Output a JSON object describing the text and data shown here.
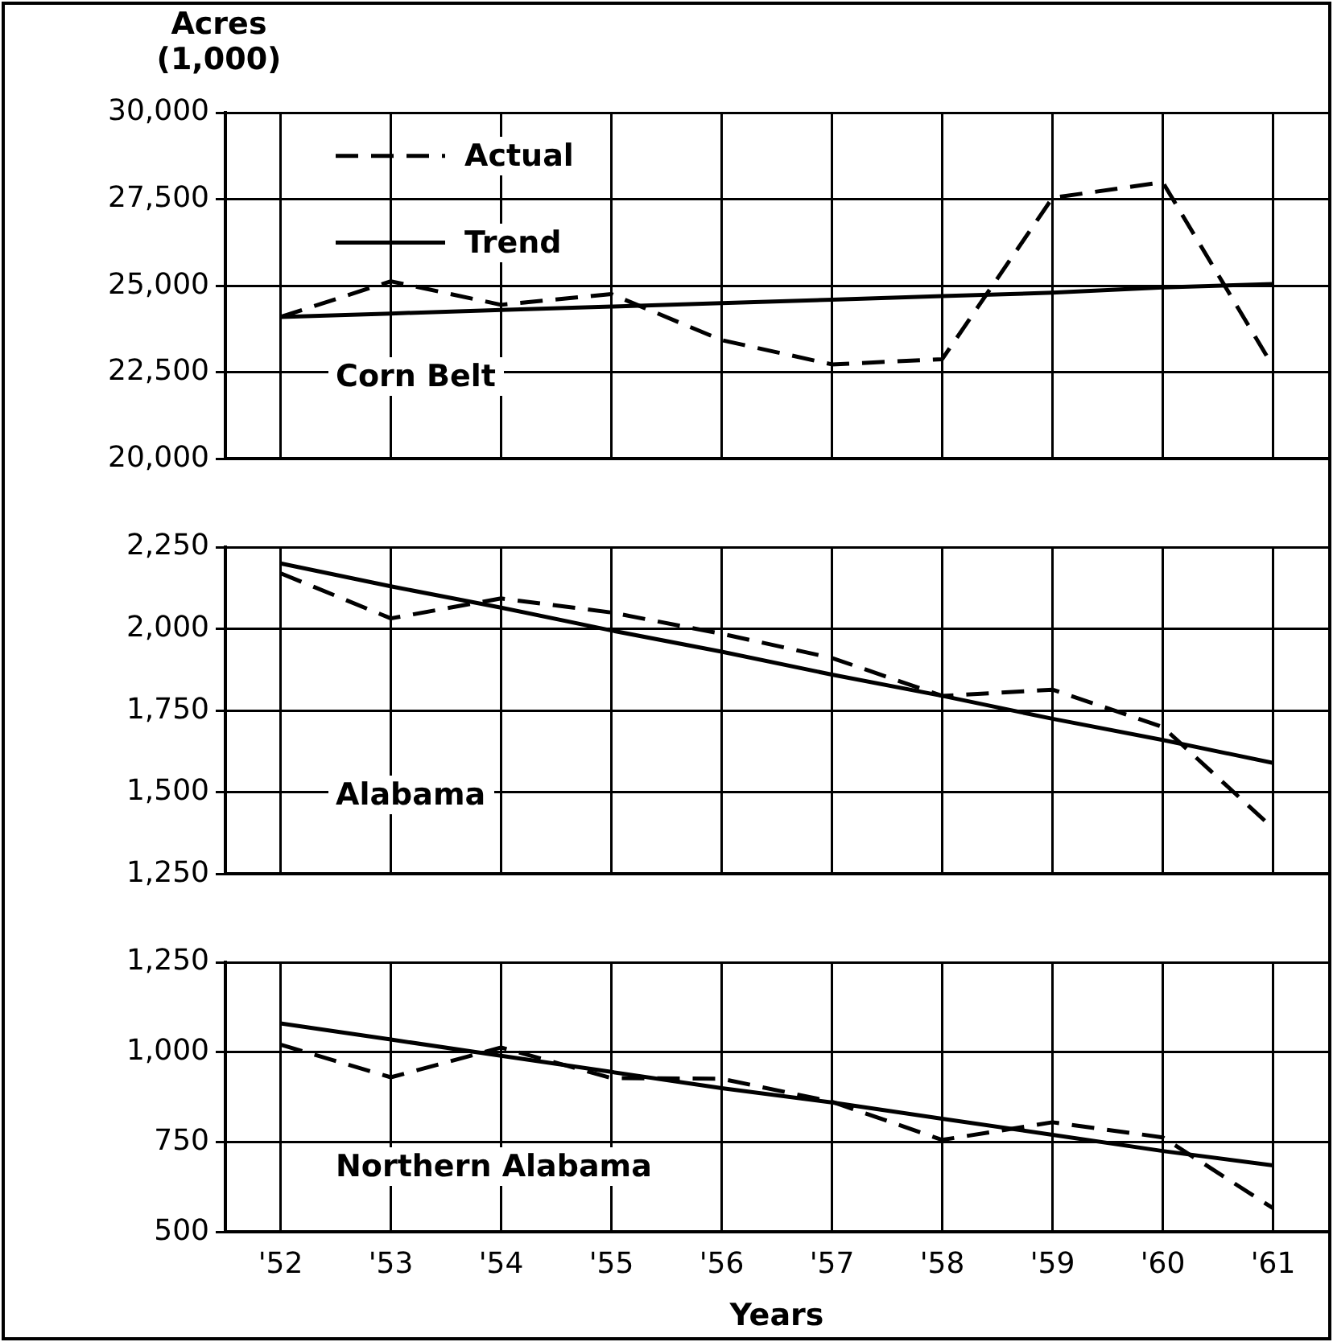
{
  "chart_data": [
    {
      "type": "line",
      "ylabel": "Acres (1,000)",
      "categories": [
        null,
        null,
        null,
        null,
        null,
        null,
        null,
        null,
        null,
        null
      ],
      "series": [
        {
          "name": "Actual",
          "color": "#000000",
          "line_style": "dashed",
          "values": [
            24100,
            25130,
            24450,
            24760,
            23430,
            22730,
            22880,
            27540,
            27990,
            22670
          ]
        },
        {
          "name": "Trend",
          "color": "#000000",
          "line_style": "solid",
          "values": [
            24100,
            24200,
            24300,
            24400,
            24500,
            24600,
            24700,
            24800,
            24950,
            25050
          ]
        }
      ],
      "ylim": [
        20000,
        30000
      ],
      "yticks": [
        {
          "value": 20000,
          "label": "20,000"
        },
        {
          "value": 22500,
          "label": "22,500"
        },
        {
          "value": 25000,
          "label": "25,000"
        },
        {
          "value": 27500,
          "label": "27,500"
        },
        {
          "value": 30000,
          "label": "30,000"
        }
      ],
      "annotations": [
        "Corn Belt"
      ],
      "grid": true,
      "legend": "top left",
      "marker": "none",
      "tick_labels": "y"
    },
    {
      "type": "line",
      "categories": [
        null,
        null,
        null,
        null,
        null,
        null,
        null,
        null,
        null,
        null
      ],
      "series": [
        {
          "color": "#000000",
          "line_style": "dashed",
          "values": [
            2170,
            2032,
            2093,
            2050,
            1985,
            1911,
            1795,
            1814,
            1700,
            1390
          ]
        },
        {
          "color": "#000000",
          "line_style": "solid",
          "values": [
            2200,
            2130,
            2065,
            1995,
            1930,
            1860,
            1795,
            1725,
            1660,
            1590
          ]
        }
      ],
      "ylim": [
        1250,
        2250
      ],
      "yticks": [
        {
          "value": 1250,
          "label": "1,250"
        },
        {
          "value": 1500,
          "label": "1,500"
        },
        {
          "value": 1750,
          "label": "1,750"
        },
        {
          "value": 2000,
          "label": "2,000"
        },
        {
          "value": 2250,
          "label": "2,250"
        }
      ],
      "annotations": [
        "Alabama"
      ],
      "grid": true,
      "marker": "none",
      "tick_labels": "y"
    },
    {
      "type": "line",
      "xlabel": "Years",
      "categories": [
        "'52",
        "'53",
        "'54",
        "'55",
        "'56",
        "'57",
        "'58",
        "'59",
        "'60",
        "'61"
      ],
      "series": [
        {
          "color": "#000000",
          "line_style": "dashed",
          "values": [
            1021,
            930,
            1013,
            928,
            926,
            862,
            756,
            805,
            763,
            566
          ]
        },
        {
          "color": "#000000",
          "line_style": "solid",
          "values": [
            1080,
            1035,
            990,
            945,
            900,
            860,
            815,
            770,
            725,
            685
          ]
        }
      ],
      "ylim": [
        500,
        1250
      ],
      "yticks": [
        500,
        750,
        {
          "value": 1000,
          "label": "1,000"
        },
        {
          "value": 1250,
          "label": "1,250"
        }
      ],
      "annotations": [
        "Northern Alabama"
      ],
      "grid": true,
      "marker": "none"
    }
  ]
}
